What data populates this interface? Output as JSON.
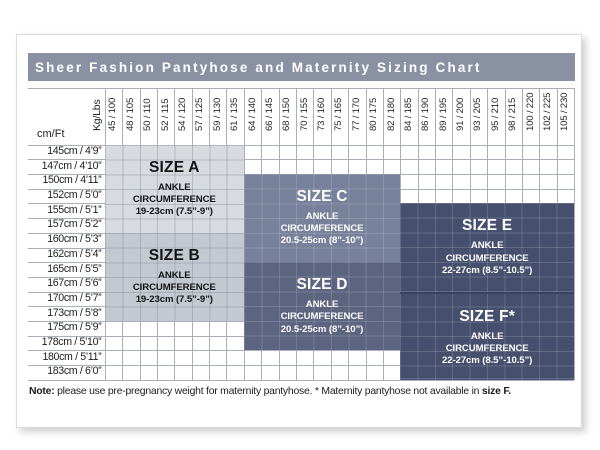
{
  "title_bar": {
    "text": "Sheer Fashion Pantyhose and Maternity Sizing Chart",
    "bg": "#8a91a2",
    "text_color": "#ffffff"
  },
  "axes": {
    "weight_header": "Kg/Lbs",
    "height_header": "cm/Ft"
  },
  "note": {
    "label": "Note:",
    "text": " please use pre-pregnancy weight for maternity pantyhose. * Maternity pantyhose not available in ",
    "emphasis": "size F."
  },
  "colors": {
    "grid_line": "#a9aeb8",
    "light_block_line": "rgba(110,118,134,0.33)",
    "dark_block_line": "rgba(255,255,255,0.15)",
    "ef_divider": "#39425e"
  },
  "chart_data": {
    "type": "table",
    "title": "Sheer Fashion Pantyhose and Maternity Sizing Chart",
    "x_axis": {
      "label": "Kg/Lbs",
      "ticks": [
        "45 / 100",
        "48 / 105",
        "50 / 110",
        "52 / 115",
        "54 / 120",
        "57 / 125",
        "59 / 130",
        "61 / 135",
        "64 / 140",
        "66 / 145",
        "68 / 150",
        "70 / 155",
        "73 / 160",
        "75 / 165",
        "77 / 170",
        "80 / 175",
        "82 / 180",
        "84 / 185",
        "86 / 190",
        "89 / 195",
        "91 / 200",
        "93 / 205",
        "95 / 210",
        "98 / 215",
        "100 / 220",
        "102 / 225",
        "105 / 230"
      ]
    },
    "y_axis": {
      "label": "cm/Ft",
      "ticks": [
        "145cm / 4’9”",
        "147cm / 4’10”",
        "150cm / 4’11”",
        "152cm / 5’0”",
        "155cm / 5’1”",
        "157cm / 5’2”",
        "160cm / 5’3”",
        "162cm / 5’4”",
        "165cm / 5’5”",
        "167cm / 5’6”",
        "170cm / 5’7”",
        "173cm / 5’8”",
        "175cm / 5’9”",
        "178cm / 5’10”",
        "180cm / 5’11”",
        "183cm / 6’0”"
      ]
    },
    "grid": true,
    "regions": [
      {
        "size": "SIZE A",
        "desc": [
          "ANKLE",
          "CIRCUMFERENCE",
          "19-23cm (7.5”-9”)"
        ],
        "col_start": 1,
        "col_end": 8,
        "row_start": 1,
        "row_end": 6,
        "fill": "#d7dade",
        "text_color": "#131417",
        "line_style": "light"
      },
      {
        "size": "SIZE B",
        "desc": [
          "ANKLE",
          "CIRCUMFERENCE",
          "19-23cm (7.5”-9”)"
        ],
        "col_start": 1,
        "col_end": 8,
        "row_start": 7,
        "row_end": 12,
        "fill": "#c4c9d1",
        "text_color": "#131417",
        "line_style": "light"
      },
      {
        "size": "SIZE C",
        "desc": [
          "ANKLE",
          "CIRCUMFERENCE",
          "20.5-25cm (8”-10”)"
        ],
        "col_start": 9,
        "col_end": 17,
        "row_start": 3,
        "row_end": 8,
        "fill": "#78819b",
        "text_color": "#ffffff",
        "line_style": "dark"
      },
      {
        "size": "SIZE D",
        "desc": [
          "ANKLE",
          "CIRCUMFERENCE",
          "20.5-25cm (8”-10”)"
        ],
        "col_start": 9,
        "col_end": 17,
        "row_start": 9,
        "row_end": 14,
        "fill": "#5c6480",
        "text_color": "#ffffff",
        "line_style": "dark"
      },
      {
        "size": "SIZE E",
        "desc": [
          "ANKLE",
          "CIRCUMFERENCE",
          "22-27cm (8.5”-10.5”)"
        ],
        "col_start": 18,
        "col_end": 27,
        "row_start": 5,
        "row_end": 10,
        "fill": "#46506e",
        "text_color": "#ffffff",
        "line_style": "dark"
      },
      {
        "size": "SIZE F*",
        "desc": [
          "ANKLE",
          "CIRCUMFERENCE",
          "22-27cm (8.5”-10.5”)"
        ],
        "col_start": 18,
        "col_end": 27,
        "row_start": 11,
        "row_end": 16,
        "fill": "#46506e",
        "text_color": "#ffffff",
        "line_style": "dark",
        "divider_top": true
      }
    ]
  }
}
